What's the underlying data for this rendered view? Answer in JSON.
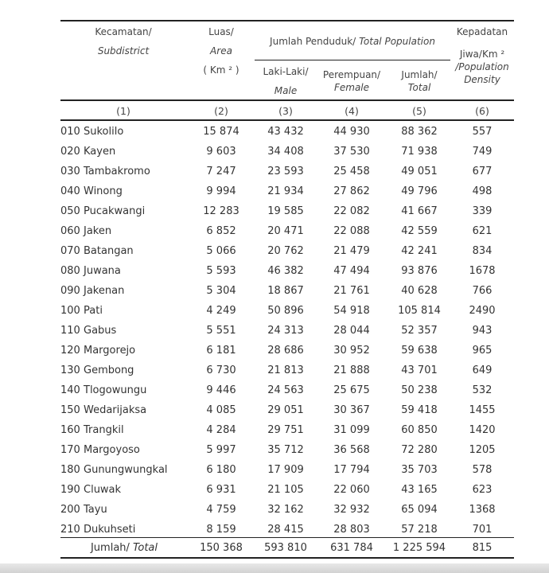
{
  "header": {
    "subdistrict_id": "Kecamatan/",
    "subdistrict_en": "Subdistrict",
    "area_id": "Luas/",
    "area_en": "Area",
    "area_unit": "( Km ² )",
    "population_id": "Jumlah  Penduduk/",
    "population_en": "Total Population",
    "male_id": "Laki-Laki/",
    "male_en": "Male",
    "female_id": "Perempuan/",
    "female_en": "Female",
    "total_id": "Jumlah/",
    "total_en": "Total",
    "density_id": "Kepadatan",
    "density_unit": "Jiwa/Km ²",
    "density_en_1": "/Population",
    "density_en_2": "Density"
  },
  "column_numbers": [
    "(1)",
    "(2)",
    "(3)",
    "(4)",
    "(5)",
    "(6)"
  ],
  "rows": [
    {
      "code": "010",
      "name": "Sukolilo",
      "area": "15 874",
      "male": "43 432",
      "female": "44 930",
      "total": "88 362",
      "density": "557"
    },
    {
      "code": "020",
      "name": "Kayen",
      "area": "9 603",
      "male": "34 408",
      "female": "37 530",
      "total": "71 938",
      "density": "749"
    },
    {
      "code": "030",
      "name": "Tambakromo",
      "area": "7 247",
      "male": "23 593",
      "female": "25 458",
      "total": "49 051",
      "density": "677"
    },
    {
      "code": "040",
      "name": "Winong",
      "area": "9 994",
      "male": "21 934",
      "female": "27 862",
      "total": "49 796",
      "density": "498"
    },
    {
      "code": "050",
      "name": "Pucakwangi",
      "area": "12 283",
      "male": "19 585",
      "female": "22 082",
      "total": "41 667",
      "density": "339"
    },
    {
      "code": "060",
      "name": "Jaken",
      "area": "6 852",
      "male": "20 471",
      "female": "22 088",
      "total": "42 559",
      "density": "621"
    },
    {
      "code": "070",
      "name": "Batangan",
      "area": "5 066",
      "male": "20 762",
      "female": "21 479",
      "total": "42 241",
      "density": "834"
    },
    {
      "code": "080",
      "name": "Juwana",
      "area": "5 593",
      "male": "46 382",
      "female": "47 494",
      "total": "93 876",
      "density": "1678"
    },
    {
      "code": "090",
      "name": "Jakenan",
      "area": "5 304",
      "male": "18 867",
      "female": "21 761",
      "total": "40 628",
      "density": "766"
    },
    {
      "code": "100",
      "name": "Pati",
      "area": "4 249",
      "male": "50 896",
      "female": "54 918",
      "total": "105 814",
      "density": "2490"
    },
    {
      "code": "110",
      "name": "Gabus",
      "area": "5 551",
      "male": "24 313",
      "female": "28 044",
      "total": "52 357",
      "density": "943"
    },
    {
      "code": "120",
      "name": "Margorejo",
      "area": "6 181",
      "male": "28 686",
      "female": "30 952",
      "total": "59 638",
      "density": "965"
    },
    {
      "code": "130",
      "name": "Gembong",
      "area": "6 730",
      "male": "21 813",
      "female": "21 888",
      "total": "43 701",
      "density": "649"
    },
    {
      "code": "140",
      "name": "Tlogowungu",
      "area": "9 446",
      "male": "24 563",
      "female": "25 675",
      "total": "50 238",
      "density": "532"
    },
    {
      "code": "150",
      "name": "Wedarijaksa",
      "area": "4 085",
      "male": "29 051",
      "female": "30 367",
      "total": "59 418",
      "density": "1455"
    },
    {
      "code": "160",
      "name": "Trangkil",
      "area": "4 284",
      "male": "29 751",
      "female": "31 099",
      "total": "60 850",
      "density": "1420"
    },
    {
      "code": "170",
      "name": "Margoyoso",
      "area": "5 997",
      "male": "35 712",
      "female": "36 568",
      "total": "72 280",
      "density": "1205"
    },
    {
      "code": "180",
      "name": "Gunungwungkal",
      "area": "6 180",
      "male": "17 909",
      "female": "17 794",
      "total": "35 703",
      "density": "578"
    },
    {
      "code": "190",
      "name": "Cluwak",
      "area": "6 931",
      "male": "21 105",
      "female": "22 060",
      "total": "43 165",
      "density": "623"
    },
    {
      "code": "200",
      "name": "Tayu",
      "area": "4 759",
      "male": "32 162",
      "female": "32 932",
      "total": "65 094",
      "density": "1368"
    },
    {
      "code": "210",
      "name": "Dukuhseti",
      "area": "8 159",
      "male": "28 415",
      "female": "28 803",
      "total": "57 218",
      "density": "701"
    }
  ],
  "total": {
    "label_id": "Jumlah/ ",
    "label_en": "Total",
    "area": "150 368",
    "male": "593 810",
    "female": "631 784",
    "total": "1 225 594",
    "density": "815"
  }
}
